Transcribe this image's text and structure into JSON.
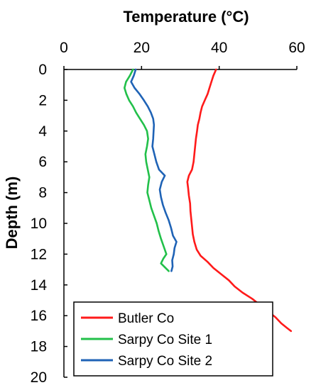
{
  "chart_data": {
    "type": "line",
    "orientation": "depth-profile",
    "xlabel": "Temperature (°C)",
    "ylabel": "Depth (m)",
    "xlim": [
      0,
      60
    ],
    "ylim": [
      0,
      20
    ],
    "x_axis_position": "top",
    "y_axis_inverted": true,
    "xticks": [
      "0",
      "20",
      "40",
      "60"
    ],
    "yticks": [
      "0",
      "2",
      "4",
      "6",
      "8",
      "10",
      "12",
      "14",
      "16",
      "18",
      "20"
    ],
    "grid": false,
    "legend_position": "bottom-left",
    "series": [
      {
        "name": "Butler Co",
        "color": "#ff1a1a",
        "points": [
          [
            39.2,
            0.0
          ],
          [
            38.5,
            0.4
          ],
          [
            38.0,
            0.8
          ],
          [
            37.5,
            1.2
          ],
          [
            37.0,
            1.6
          ],
          [
            36.3,
            2.0
          ],
          [
            35.6,
            2.4
          ],
          [
            35.2,
            2.8
          ],
          [
            34.9,
            3.2
          ],
          [
            34.5,
            3.6
          ],
          [
            34.3,
            4.0
          ],
          [
            34.0,
            4.5
          ],
          [
            33.8,
            5.0
          ],
          [
            33.6,
            5.5
          ],
          [
            33.4,
            6.0
          ],
          [
            33.0,
            6.5
          ],
          [
            32.2,
            6.9
          ],
          [
            31.8,
            7.3
          ],
          [
            32.0,
            7.7
          ],
          [
            32.2,
            8.2
          ],
          [
            32.5,
            8.7
          ],
          [
            32.6,
            9.2
          ],
          [
            32.8,
            9.7
          ],
          [
            33.0,
            10.2
          ],
          [
            33.2,
            10.7
          ],
          [
            33.6,
            11.2
          ],
          [
            34.2,
            11.7
          ],
          [
            35.2,
            12.1
          ],
          [
            37.0,
            12.5
          ],
          [
            38.5,
            12.9
          ],
          [
            40.5,
            13.3
          ],
          [
            42.5,
            13.7
          ],
          [
            44.0,
            14.1
          ],
          [
            46.0,
            14.5
          ],
          [
            48.5,
            14.9
          ],
          [
            50.5,
            15.3
          ],
          [
            52.5,
            15.7
          ],
          [
            54.5,
            16.1
          ],
          [
            56.0,
            16.5
          ],
          [
            57.5,
            16.8
          ],
          [
            58.5,
            17.0
          ]
        ]
      },
      {
        "name": "Sarpy Co Site 1",
        "color": "#22c04a",
        "points": [
          [
            17.8,
            0.0
          ],
          [
            17.0,
            0.4
          ],
          [
            16.0,
            0.8
          ],
          [
            15.6,
            1.2
          ],
          [
            16.1,
            1.6
          ],
          [
            16.8,
            2.0
          ],
          [
            17.8,
            2.4
          ],
          [
            18.6,
            2.8
          ],
          [
            19.6,
            3.2
          ],
          [
            20.6,
            3.6
          ],
          [
            21.4,
            4.0
          ],
          [
            21.7,
            4.5
          ],
          [
            21.4,
            5.0
          ],
          [
            21.0,
            5.5
          ],
          [
            21.2,
            6.0
          ],
          [
            21.6,
            6.5
          ],
          [
            22.0,
            7.0
          ],
          [
            21.7,
            7.5
          ],
          [
            21.5,
            8.0
          ],
          [
            22.0,
            8.5
          ],
          [
            22.5,
            9.0
          ],
          [
            23.2,
            9.5
          ],
          [
            23.9,
            10.0
          ],
          [
            24.4,
            10.5
          ],
          [
            25.0,
            11.0
          ],
          [
            25.7,
            11.5
          ],
          [
            26.4,
            12.0
          ],
          [
            25.6,
            12.3
          ],
          [
            25.0,
            12.6
          ],
          [
            26.2,
            12.9
          ],
          [
            27.0,
            13.1
          ]
        ]
      },
      {
        "name": "Sarpy Co Site 2",
        "color": "#1f63b6",
        "points": [
          [
            18.5,
            0.0
          ],
          [
            18.0,
            0.4
          ],
          [
            17.3,
            0.8
          ],
          [
            18.2,
            1.2
          ],
          [
            19.5,
            1.6
          ],
          [
            20.6,
            2.0
          ],
          [
            21.6,
            2.4
          ],
          [
            22.4,
            2.8
          ],
          [
            23.0,
            3.2
          ],
          [
            23.2,
            3.6
          ],
          [
            23.1,
            4.0
          ],
          [
            23.0,
            4.5
          ],
          [
            22.8,
            5.0
          ],
          [
            23.3,
            5.5
          ],
          [
            23.8,
            6.0
          ],
          [
            24.5,
            6.5
          ],
          [
            26.0,
            6.9
          ],
          [
            25.2,
            7.3
          ],
          [
            24.7,
            7.8
          ],
          [
            25.0,
            8.3
          ],
          [
            25.5,
            8.8
          ],
          [
            26.2,
            9.3
          ],
          [
            27.0,
            9.8
          ],
          [
            27.6,
            10.3
          ],
          [
            28.1,
            10.8
          ],
          [
            29.0,
            11.2
          ],
          [
            28.5,
            11.6
          ],
          [
            28.3,
            12.0
          ],
          [
            27.9,
            12.4
          ],
          [
            28.0,
            12.8
          ],
          [
            27.7,
            13.1
          ]
        ]
      }
    ]
  }
}
